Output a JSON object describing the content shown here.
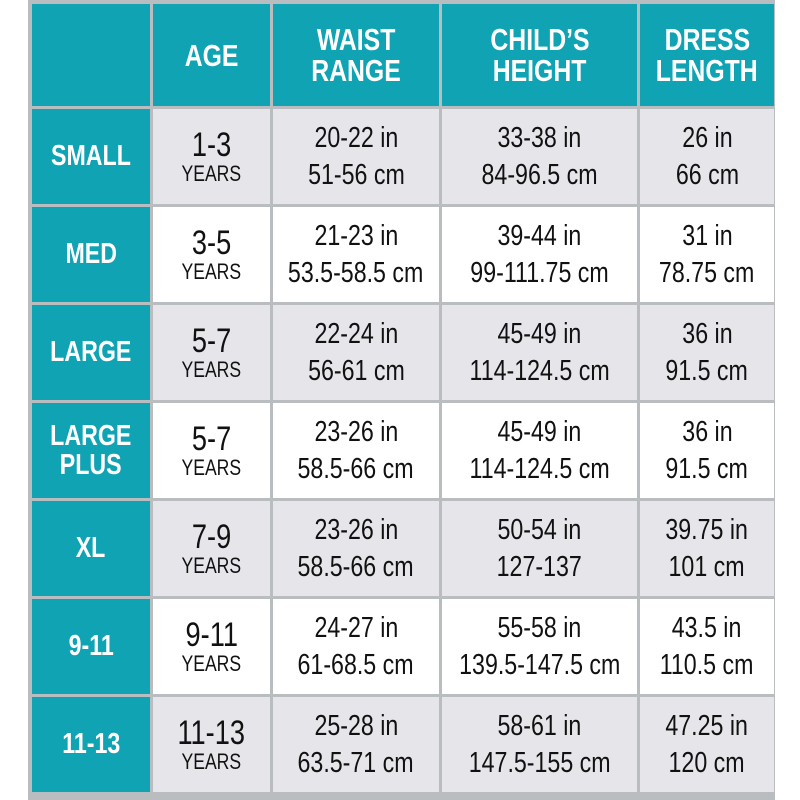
{
  "headers": [
    "",
    "AGE",
    "WAIST RANGE",
    "CHILD’S HEIGHT",
    "DRESS LENGTH"
  ],
  "header_lines": [
    [
      ""
    ],
    [
      "AGE"
    ],
    [
      "WAIST",
      "RANGE"
    ],
    [
      "CHILD’S",
      "HEIGHT"
    ],
    [
      "DRESS",
      "LENGTH"
    ]
  ],
  "rows": [
    {
      "size": [
        "SMALL"
      ],
      "age": "1-3",
      "age_unit": "YEARS",
      "waist": [
        "20-22 in",
        "51-56 cm"
      ],
      "height": [
        "33-38 in",
        "84-96.5 cm"
      ],
      "length": [
        "26 in",
        "66 cm"
      ]
    },
    {
      "size": [
        "MED"
      ],
      "age": "3-5",
      "age_unit": "YEARS",
      "waist": [
        "21-23 in",
        "53.5-58.5 cm"
      ],
      "height": [
        "39-44 in",
        "99-111.75 cm"
      ],
      "length": [
        "31 in",
        "78.75 cm"
      ]
    },
    {
      "size": [
        "LARGE"
      ],
      "age": "5-7",
      "age_unit": "YEARS",
      "waist": [
        "22-24 in",
        "56-61 cm"
      ],
      "height": [
        "45-49 in",
        "114-124.5 cm"
      ],
      "length": [
        "36 in",
        "91.5 cm"
      ]
    },
    {
      "size": [
        "LARGE",
        "PLUS"
      ],
      "age": "5-7",
      "age_unit": "YEARS",
      "waist": [
        "23-26 in",
        "58.5-66 cm"
      ],
      "height": [
        "45-49 in",
        "114-124.5 cm"
      ],
      "length": [
        "36 in",
        "91.5 cm"
      ]
    },
    {
      "size": [
        "XL"
      ],
      "age": "7-9",
      "age_unit": "YEARS",
      "waist": [
        "23-26 in",
        "58.5-66 cm"
      ],
      "height": [
        "50-54 in",
        "127-137"
      ],
      "length": [
        "39.75 in",
        "101 cm"
      ]
    },
    {
      "size": [
        "9-11"
      ],
      "age": "9-11",
      "age_unit": "YEARS",
      "waist": [
        "24-27 in",
        "61-68.5 cm"
      ],
      "height": [
        "55-58 in",
        "139.5-147.5 cm"
      ],
      "length": [
        "43.5 in",
        "110.5 cm"
      ]
    },
    {
      "size": [
        "11-13"
      ],
      "age": "11-13",
      "age_unit": "YEARS",
      "waist": [
        "25-28 in",
        "63.5-71 cm"
      ],
      "height": [
        "58-61 in",
        "147.5-155 cm"
      ],
      "length": [
        "47.25 in",
        "120 cm"
      ]
    }
  ],
  "colors": {
    "header": "#0fa3b4",
    "row_alt": "#e6e6ea",
    "grid": "#b9bdc0"
  }
}
